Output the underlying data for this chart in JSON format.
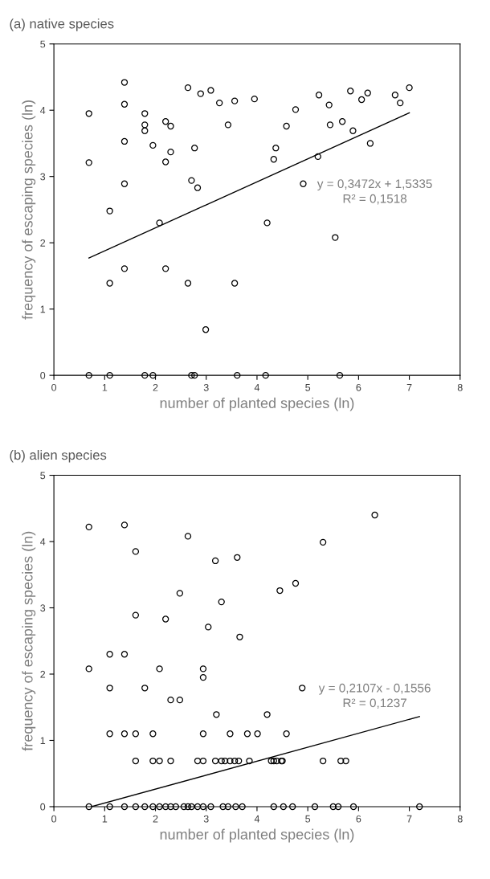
{
  "chart_data": [
    {
      "type": "scatter",
      "title": "(a) native species",
      "xlabel": "number of planted species (ln)",
      "ylabel": "frequency of escaping species (ln)",
      "xlim": [
        0,
        8
      ],
      "ylim": [
        0,
        5
      ],
      "xticks": [
        0,
        1,
        2,
        3,
        4,
        5,
        6,
        7,
        8
      ],
      "yticks": [
        0,
        1,
        2,
        3,
        4,
        5
      ],
      "grid": false,
      "legend": false,
      "annotations": [
        "y = 0,3472x + 1,5335",
        "R² = 0,1518"
      ],
      "series": [
        {
          "marker": "circle",
          "color": "#000000",
          "x": [
            0.69,
            0.69,
            0.69,
            1.1,
            1.1,
            1.1,
            1.39,
            1.39,
            1.39,
            1.39,
            1.39,
            1.79,
            1.79,
            1.79,
            1.79,
            1.95,
            1.95,
            2.08,
            2.2,
            2.2,
            2.2,
            2.3,
            2.3,
            2.64,
            2.64,
            2.71,
            2.71,
            2.77,
            2.77,
            2.83,
            2.89,
            2.99,
            3.09,
            3.26,
            3.43,
            3.56,
            3.56,
            3.61,
            3.95,
            4.17,
            4.2,
            4.33,
            4.37,
            4.58,
            4.76,
            4.91,
            5.2,
            5.22,
            5.42,
            5.44,
            5.54,
            5.63,
            5.68,
            5.84,
            5.89,
            6.06,
            6.18,
            6.23,
            6.72,
            6.82,
            7.0
          ],
          "values": [
            3.95,
            3.21,
            0,
            2.48,
            1.39,
            0,
            4.42,
            4.09,
            3.53,
            2.89,
            1.61,
            3.95,
            3.78,
            3.69,
            0,
            3.47,
            0,
            2.3,
            3.83,
            3.22,
            1.61,
            3.76,
            3.37,
            4.34,
            1.39,
            2.94,
            0,
            3.43,
            0,
            2.83,
            4.25,
            0.69,
            4.3,
            4.11,
            3.78,
            4.14,
            1.39,
            0,
            4.17,
            0,
            2.3,
            3.26,
            3.43,
            3.76,
            4.01,
            2.89,
            3.3,
            4.23,
            4.08,
            3.78,
            2.08,
            0,
            3.83,
            4.29,
            3.69,
            4.16,
            4.26,
            3.5,
            4.23,
            4.11,
            4.34
          ]
        },
        {
          "type": "line",
          "color": "#000000",
          "line_style": "solid",
          "x": [
            0.69,
            7.0
          ],
          "values": [
            1.77,
            3.96
          ]
        }
      ]
    },
    {
      "type": "scatter",
      "title": "(b) alien species",
      "xlabel": "number of planted species (ln)",
      "ylabel": "frequency of escaping species (ln)",
      "xlim": [
        0,
        8
      ],
      "ylim": [
        0,
        5
      ],
      "xticks": [
        0,
        1,
        2,
        3,
        4,
        5,
        6,
        7,
        8
      ],
      "yticks": [
        0,
        1,
        2,
        3,
        4,
        5
      ],
      "grid": false,
      "legend": false,
      "annotations": [
        "y = 0,2107x - 0,1556",
        "R² = 0,1237"
      ],
      "series": [
        {
          "marker": "circle",
          "color": "#000000",
          "x": [
            0.69,
            0.69,
            0.69,
            1.1,
            1.1,
            1.1,
            1.1,
            1.39,
            1.39,
            1.39,
            1.39,
            1.61,
            1.61,
            1.61,
            1.61,
            1.61,
            1.79,
            1.79,
            1.95,
            1.95,
            1.95,
            2.08,
            2.08,
            2.08,
            2.2,
            2.2,
            2.3,
            2.3,
            2.3,
            2.48,
            2.48,
            2.4,
            2.56,
            2.64,
            2.64,
            2.71,
            2.83,
            2.83,
            2.94,
            2.94,
            2.94,
            2.94,
            2.94,
            3.04,
            3.09,
            3.18,
            3.2,
            3.18,
            3.3,
            3.3,
            3.33,
            3.37,
            3.43,
            3.47,
            3.47,
            3.56,
            3.58,
            3.61,
            3.66,
            3.64,
            3.71,
            3.81,
            3.85,
            4.01,
            4.2,
            4.28,
            4.33,
            4.33,
            4.39,
            4.45,
            4.48,
            4.5,
            4.52,
            4.58,
            4.76,
            4.7,
            4.89,
            5.14,
            5.3,
            5.3,
            5.5,
            5.6,
            5.65,
            5.75,
            5.9,
            6.32,
            7.2
          ],
          "values": [
            4.22,
            2.08,
            0,
            2.3,
            1.79,
            1.1,
            0,
            4.25,
            2.3,
            1.1,
            0,
            3.85,
            2.89,
            1.1,
            0.69,
            0,
            1.79,
            0,
            1.1,
            0.69,
            0,
            2.08,
            0.69,
            0,
            2.83,
            0,
            1.61,
            0.69,
            0,
            3.22,
            1.61,
            0,
            0,
            4.08,
            0,
            0,
            0.69,
            0,
            2.08,
            1.95,
            1.1,
            0.69,
            0,
            2.71,
            0,
            3.71,
            1.39,
            0.69,
            3.09,
            0.69,
            0,
            0.69,
            0,
            1.1,
            0.69,
            0.69,
            0,
            3.76,
            2.56,
            0.69,
            0,
            1.1,
            0.69,
            1.1,
            1.39,
            0.69,
            0.69,
            0,
            0.69,
            3.26,
            0.69,
            0.69,
            0,
            1.1,
            3.37,
            0,
            1.79,
            0,
            3.99,
            0.69,
            0,
            0,
            0.69,
            0.69,
            0,
            4.4,
            0
          ]
        },
        {
          "type": "line",
          "color": "#000000",
          "line_style": "solid",
          "x": [
            0.74,
            7.2
          ],
          "values": [
            0,
            1.36
          ]
        }
      ]
    }
  ]
}
